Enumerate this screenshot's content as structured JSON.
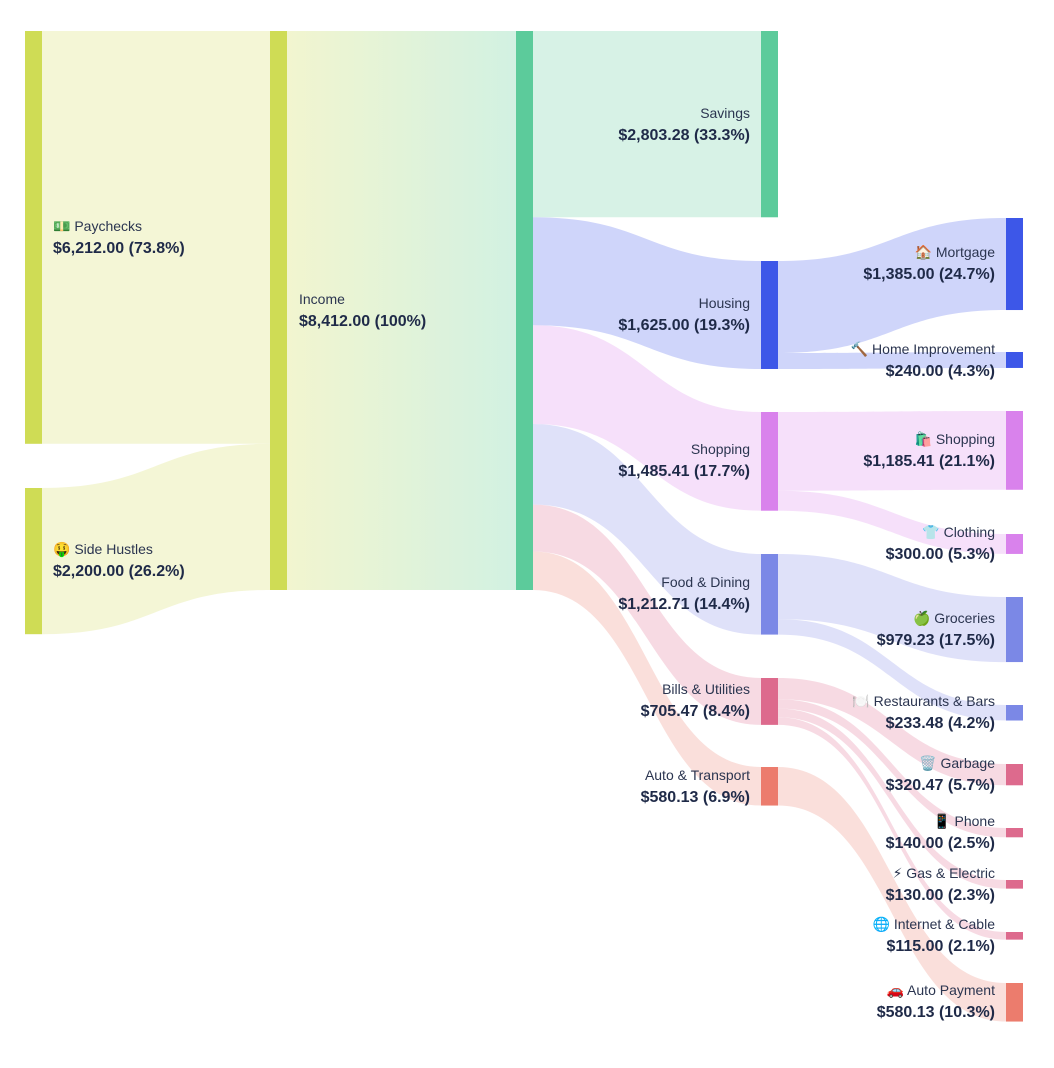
{
  "chart_data": {
    "type": "sankey",
    "title": "",
    "nodes": [
      {
        "id": "paychecks",
        "icon": "money-icon",
        "name": "💵 Paychecks",
        "value": "$6,212.00 (73.8%)",
        "amount": 6212.0,
        "color": "#cfdc55"
      },
      {
        "id": "side-hustles",
        "icon": "money-face-icon",
        "name": "🤑 Side Hustles",
        "value": "$2,200.00 (26.2%)",
        "amount": 2200.0,
        "color": "#cfdc55"
      },
      {
        "id": "income",
        "icon": "",
        "name": "Income",
        "value": "$8,412.00 (100%)",
        "amount": 8412.0,
        "color": "#cfdc55"
      },
      {
        "id": "income-out",
        "icon": "",
        "name": "",
        "value": "",
        "amount": 8412.0,
        "color": "#5ccb9b"
      },
      {
        "id": "savings",
        "icon": "",
        "name": "Savings",
        "value": "$2,803.28 (33.3%)",
        "amount": 2803.28,
        "color": "#5ccb9b"
      },
      {
        "id": "housing",
        "icon": "",
        "name": "Housing",
        "value": "$1,625.00 (19.3%)",
        "amount": 1625.0,
        "color": "#3d57e8"
      },
      {
        "id": "shopping-cat",
        "icon": "",
        "name": "Shopping",
        "value": "$1,485.41 (17.7%)",
        "amount": 1485.41,
        "color": "#d982ec"
      },
      {
        "id": "food",
        "icon": "",
        "name": "Food & Dining",
        "value": "$1,212.71 (14.4%)",
        "amount": 1212.71,
        "color": "#7b88e6"
      },
      {
        "id": "bills",
        "icon": "",
        "name": "Bills & Utilities",
        "value": "$705.47 (8.4%)",
        "amount": 705.47,
        "color": "#dd6a8d"
      },
      {
        "id": "auto",
        "icon": "",
        "name": "Auto & Transport",
        "value": "$580.13 (6.9%)",
        "amount": 580.13,
        "color": "#ec7c6d"
      },
      {
        "id": "mortgage",
        "icon": "house-icon",
        "name": "🏠 Mortgage",
        "value": "$1,385.00 (24.7%)",
        "amount": 1385.0,
        "color": "#3d57e8"
      },
      {
        "id": "home-improvement",
        "icon": "hammer-icon",
        "name": "🔨 Home Improvement",
        "value": "$240.00 (4.3%)",
        "amount": 240.0,
        "color": "#3d57e8"
      },
      {
        "id": "shopping",
        "icon": "shopping-bags-icon",
        "name": "🛍️ Shopping",
        "value": "$1,185.41 (21.1%)",
        "amount": 1185.41,
        "color": "#d982ec"
      },
      {
        "id": "clothing",
        "icon": "shirt-icon",
        "name": "👕 Clothing",
        "value": "$300.00 (5.3%)",
        "amount": 300.0,
        "color": "#d982ec"
      },
      {
        "id": "groceries",
        "icon": "apple-icon",
        "name": "🍏 Groceries",
        "value": "$979.23 (17.5%)",
        "amount": 979.23,
        "color": "#7b88e6"
      },
      {
        "id": "restaurants",
        "icon": "plate-icon",
        "name": "🍽️ Restaurants & Bars",
        "value": "$233.48 (4.2%)",
        "amount": 233.48,
        "color": "#7b88e6"
      },
      {
        "id": "garbage",
        "icon": "trash-icon",
        "name": "🗑️ Garbage",
        "value": "$320.47 (5.7%)",
        "amount": 320.47,
        "color": "#dd6a8d"
      },
      {
        "id": "phone",
        "icon": "phone-icon",
        "name": "📱 Phone",
        "value": "$140.00 (2.5%)",
        "amount": 140.0,
        "color": "#dd6a8d"
      },
      {
        "id": "gas-electric",
        "icon": "lightning-icon",
        "name": "⚡ Gas & Electric",
        "value": "$130.00 (2.3%)",
        "amount": 130.0,
        "color": "#dd6a8d"
      },
      {
        "id": "internet-cable",
        "icon": "globe-icon",
        "name": "🌐 Internet & Cable",
        "value": "$115.00 (2.1%)",
        "amount": 115.0,
        "color": "#dd6a8d"
      },
      {
        "id": "auto-payment",
        "icon": "car-icon",
        "name": "🚗 Auto Payment",
        "value": "$580.13 (10.3%)",
        "amount": 580.13,
        "color": "#ec7c6d"
      }
    ],
    "links": [
      {
        "source": "paychecks",
        "target": "income",
        "amount": 6212.0
      },
      {
        "source": "side-hustles",
        "target": "income",
        "amount": 2200.0
      },
      {
        "source": "income",
        "target": "income-out",
        "amount": 8412.0
      },
      {
        "source": "income-out",
        "target": "savings",
        "amount": 2803.28
      },
      {
        "source": "income-out",
        "target": "housing",
        "amount": 1625.0
      },
      {
        "source": "income-out",
        "target": "shopping-cat",
        "amount": 1485.41
      },
      {
        "source": "income-out",
        "target": "food",
        "amount": 1212.71
      },
      {
        "source": "income-out",
        "target": "bills",
        "amount": 705.47
      },
      {
        "source": "income-out",
        "target": "auto",
        "amount": 580.13
      },
      {
        "source": "housing",
        "target": "mortgage",
        "amount": 1385.0
      },
      {
        "source": "housing",
        "target": "home-improvement",
        "amount": 240.0
      },
      {
        "source": "shopping-cat",
        "target": "shopping",
        "amount": 1185.41
      },
      {
        "source": "shopping-cat",
        "target": "clothing",
        "amount": 300.0
      },
      {
        "source": "food",
        "target": "groceries",
        "amount": 979.23
      },
      {
        "source": "food",
        "target": "restaurants",
        "amount": 233.48
      },
      {
        "source": "bills",
        "target": "garbage",
        "amount": 320.47
      },
      {
        "source": "bills",
        "target": "phone",
        "amount": 140.0
      },
      {
        "source": "bills",
        "target": "gas-electric",
        "amount": 130.0
      },
      {
        "source": "bills",
        "target": "internet-cable",
        "amount": 115.0
      },
      {
        "source": "auto",
        "target": "auto-payment",
        "amount": 580.13
      }
    ]
  }
}
